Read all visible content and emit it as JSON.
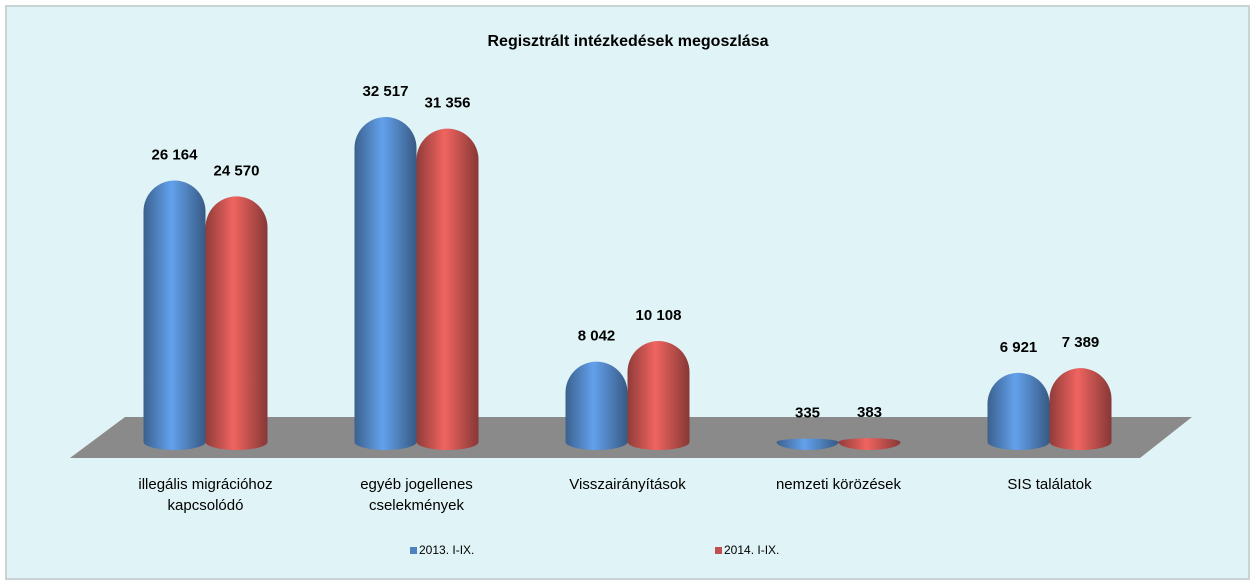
{
  "chart_data": {
    "type": "bar",
    "title": "Regisztrált intézkedések megoszlása",
    "categories": [
      "illegális migrációhoz kapcsolódó",
      "egyéb jogellenes cselekmények",
      "Visszairányítások",
      "nemzeti körözések",
      "SIS találatok"
    ],
    "series": [
      {
        "name": "2013. I-IX.",
        "color": "#4f81bd",
        "values": [
          26164,
          32517,
          8042,
          335,
          6921
        ],
        "value_labels": [
          "26 164",
          "32 517",
          "8 042",
          "335",
          "6 921"
        ]
      },
      {
        "name": "2014. I-IX.",
        "color": "#c0504d",
        "values": [
          24570,
          31356,
          10108,
          383,
          7389
        ],
        "value_labels": [
          "24 570",
          "31 356",
          "10 108",
          "383",
          "7 389"
        ]
      }
    ],
    "legend": "bottom"
  }
}
